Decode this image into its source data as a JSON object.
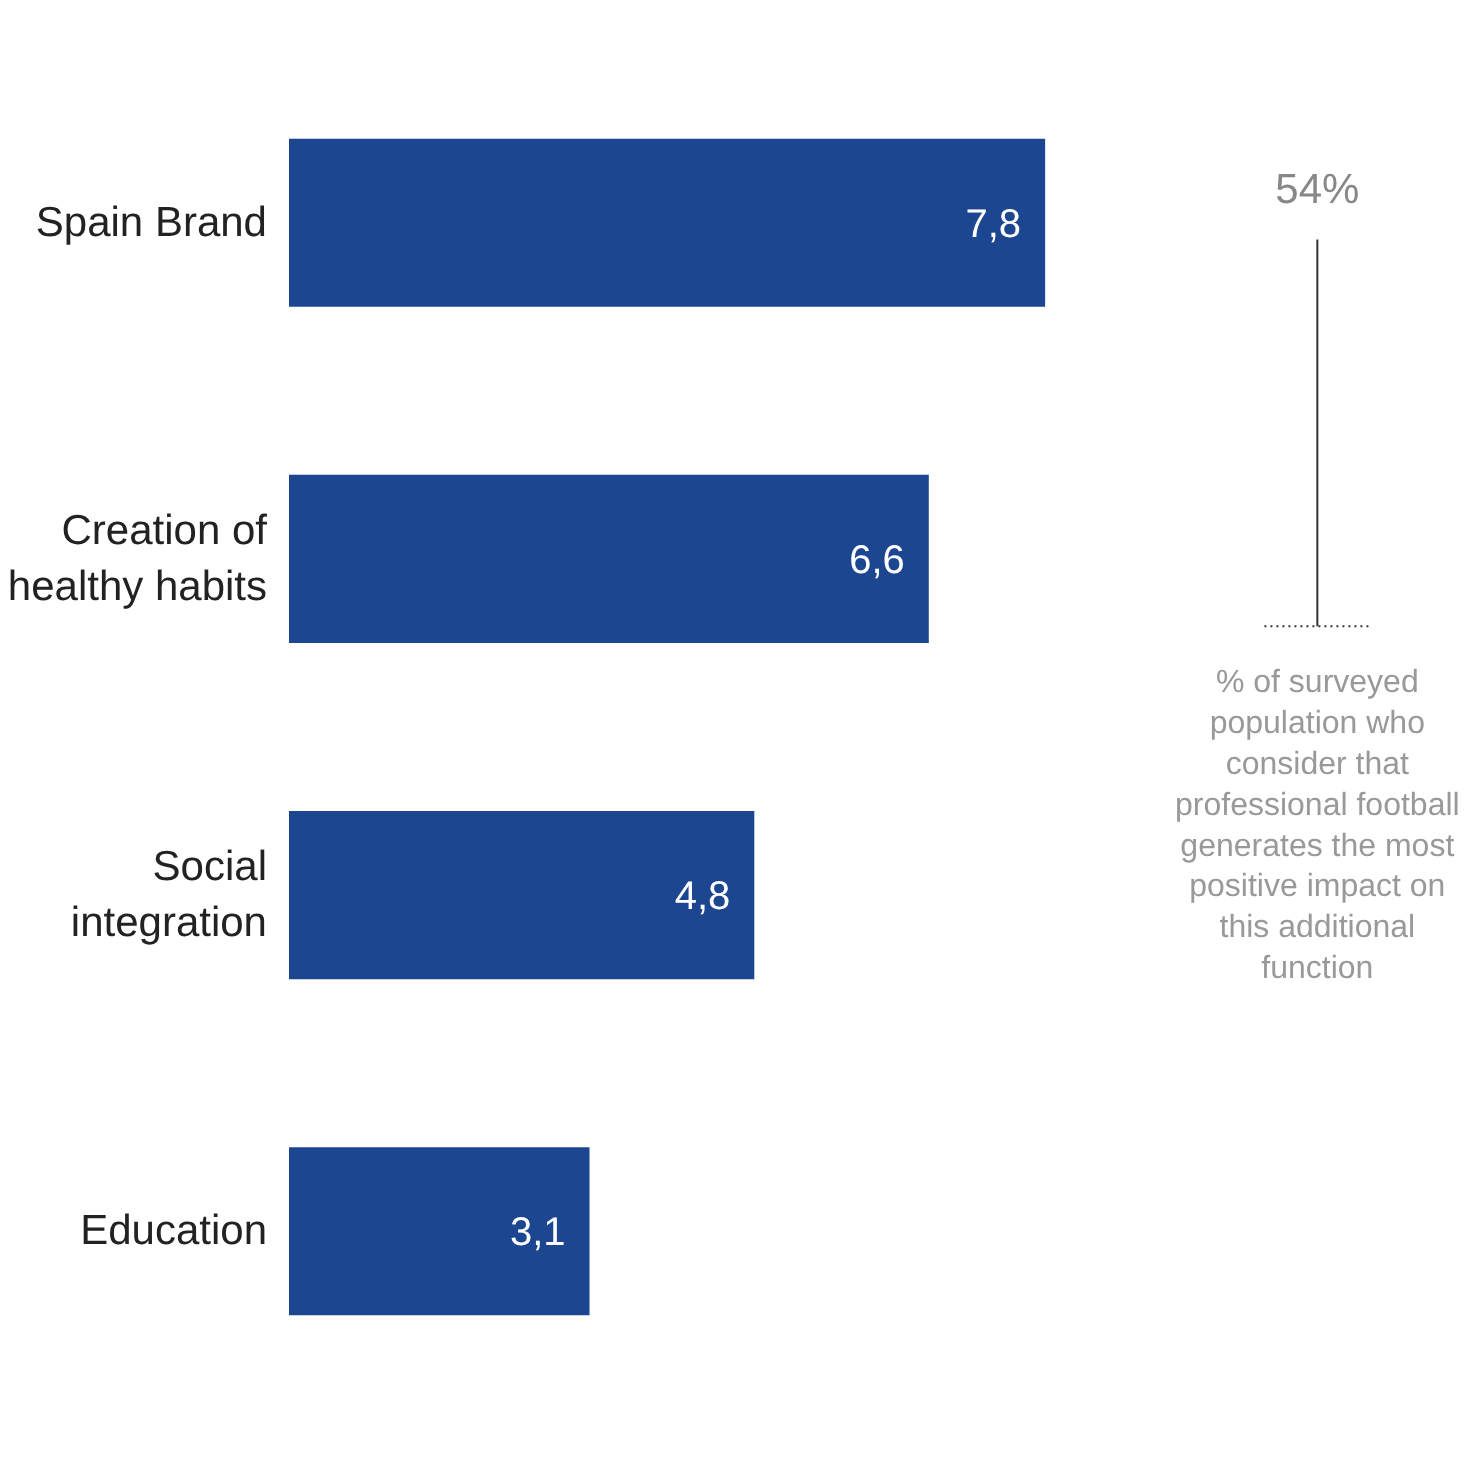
{
  "chart_data": {
    "type": "bar",
    "orientation": "horizontal",
    "categories": [
      "Spain Brand",
      "Creation of healthy habits",
      "Social integration",
      "Education"
    ],
    "values": [
      7.8,
      6.6,
      4.8,
      3.1
    ],
    "value_labels": [
      "7,8",
      "6,6",
      "4,8",
      "3,1"
    ],
    "color": "#1c4690",
    "grid": false,
    "tick_labels": "y",
    "annotations": [
      "54%",
      "% of surveyed population who consider that professional football generates the most positive impact on this additional function"
    ]
  }
}
